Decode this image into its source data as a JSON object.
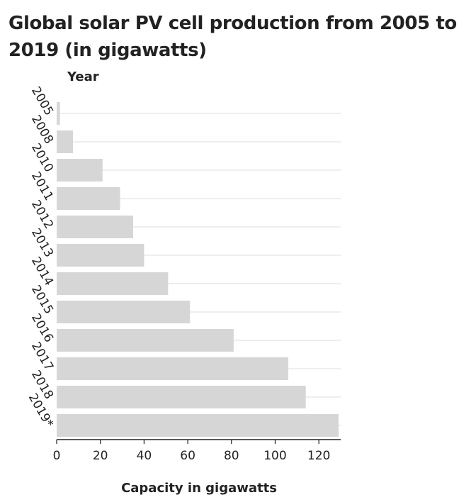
{
  "chart_data": {
    "type": "bar",
    "orientation": "horizontal",
    "title": "Global solar PV cell production from 2005 to 2019 (in gigawatts)",
    "xlabel": "Capacity in gigawatts",
    "ylabel": "Year",
    "categories": [
      "2005",
      "2008",
      "2010",
      "2011",
      "2012",
      "2013",
      "2014",
      "2015",
      "2016",
      "2017",
      "2018",
      "2019*"
    ],
    "values": [
      1.5,
      7.5,
      21,
      29,
      35,
      40,
      51,
      61,
      81,
      106,
      114,
      129
    ],
    "xlim": [
      0,
      130
    ],
    "xticks": [
      0,
      20,
      40,
      60,
      80,
      100,
      120
    ],
    "grid": "vertical-category lines",
    "bar_color": "#d6d6d6"
  }
}
